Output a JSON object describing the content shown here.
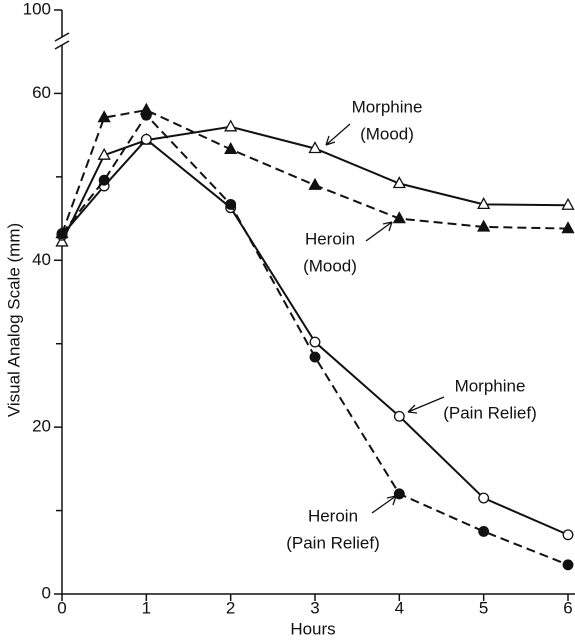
{
  "chart_data": {
    "type": "line",
    "x_label": "Hours",
    "y_label": "Visual Analog Scale (mm)",
    "x": [
      0,
      0.5,
      1,
      2,
      3,
      4,
      5,
      6
    ],
    "xlim": [
      0,
      6
    ],
    "xticks": [
      0,
      1,
      2,
      3,
      4,
      5,
      6
    ],
    "ylim": [
      0,
      100
    ],
    "ybreak": [
      70,
      100
    ],
    "yticks": [
      0,
      20,
      40,
      60,
      100
    ],
    "yminorticks": [
      10,
      30,
      50
    ],
    "series": [
      {
        "color": "#111111",
        "dashed": false,
        "marker": "triangle",
        "filled": false,
        "values": [
          42.2,
          52.6,
          54.4,
          56,
          53.4,
          49.2,
          46.7,
          46.6
        ]
      },
      {
        "color": "#111111",
        "dashed": true,
        "marker": "triangle",
        "filled": true,
        "values": [
          43.2,
          57.1,
          58,
          53.3,
          49,
          45,
          44,
          43.8
        ]
      },
      {
        "color": "#111111",
        "dashed": false,
        "marker": "circle",
        "filled": false,
        "values": [
          43,
          48.9,
          54.5,
          46.3,
          30.2,
          21.3,
          11.5,
          7.1
        ]
      },
      {
        "color": "#111111",
        "dashed": true,
        "marker": "circle",
        "filled": true,
        "values": [
          43.2,
          49.6,
          57.4,
          46.7,
          28.4,
          12,
          7.5,
          3.5
        ]
      }
    ],
    "annotations": [
      {
        "lines": [
          "Morphine",
          "(Mood)"
        ]
      },
      {
        "lines": [
          "Heroin",
          "(Mood)"
        ]
      },
      {
        "lines": [
          "Morphine",
          "(Pain Relief)"
        ]
      },
      {
        "lines": [
          "Heroin",
          "(Pain Relief)"
        ]
      }
    ]
  }
}
